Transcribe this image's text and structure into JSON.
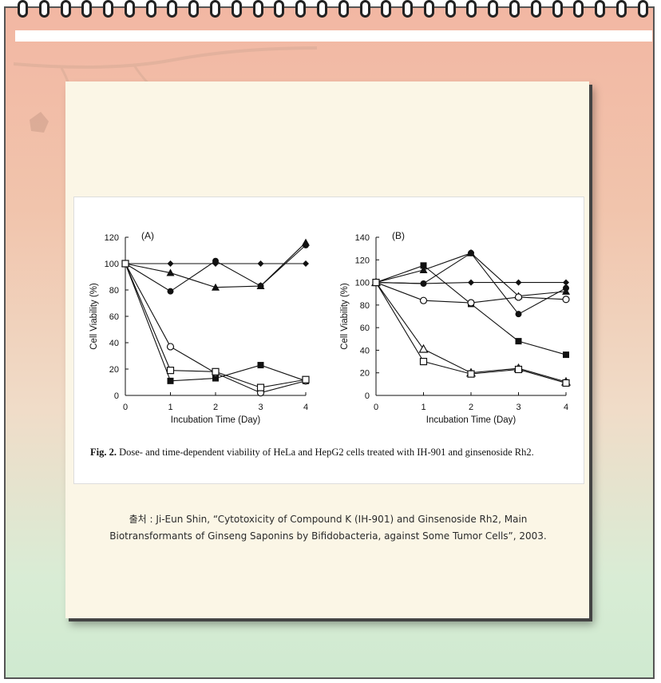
{
  "chart_data": [
    {
      "type": "line",
      "title": "(A)",
      "xlabel": "Incubation Time (Day)",
      "ylabel": "Cell Viability (%)",
      "x": [
        0,
        1,
        2,
        3,
        4
      ],
      "xlim": [
        0,
        4
      ],
      "ylim": [
        0,
        120
      ],
      "xticks": [
        0,
        1,
        2,
        3,
        4
      ],
      "yticks": [
        0,
        20,
        40,
        60,
        80,
        100,
        120
      ],
      "series": [
        {
          "marker": "diamond",
          "values": [
            100,
            100,
            100,
            100,
            100
          ]
        },
        {
          "marker": "circle-filled",
          "values": [
            100,
            79,
            102,
            83,
            114
          ]
        },
        {
          "marker": "triangle",
          "values": [
            100,
            93,
            82,
            83,
            116
          ]
        },
        {
          "marker": "square-filled",
          "values": [
            100,
            11,
            13,
            23,
            11
          ]
        },
        {
          "marker": "circle-open",
          "values": [
            100,
            37,
            17,
            2,
            11
          ]
        },
        {
          "marker": "square-open",
          "values": [
            100,
            19,
            18,
            6,
            12
          ]
        }
      ]
    },
    {
      "type": "line",
      "title": "(B)",
      "xlabel": "Incubation Time (Day)",
      "ylabel": "Cell Viability (%)",
      "x": [
        0,
        1,
        2,
        3,
        4
      ],
      "xlim": [
        0,
        4
      ],
      "ylim": [
        0,
        140
      ],
      "xticks": [
        0,
        1,
        2,
        3,
        4
      ],
      "yticks": [
        0,
        20,
        40,
        60,
        80,
        100,
        120,
        140
      ],
      "series": [
        {
          "marker": "diamond",
          "values": [
            100,
            99,
            100,
            100,
            100
          ]
        },
        {
          "marker": "circle-filled",
          "values": [
            100,
            99,
            126,
            72,
            95
          ]
        },
        {
          "marker": "triangle",
          "values": [
            100,
            111,
            126,
            88,
            92
          ]
        },
        {
          "marker": "square-filled",
          "values": [
            100,
            115,
            81,
            48,
            36
          ]
        },
        {
          "marker": "circle-open",
          "values": [
            100,
            84,
            82,
            87,
            85
          ]
        },
        {
          "marker": "triangle-open",
          "values": [
            100,
            41,
            20,
            24,
            12
          ]
        },
        {
          "marker": "square-open",
          "values": [
            100,
            30,
            19,
            23,
            11
          ]
        }
      ]
    }
  ],
  "caption": {
    "label": "Fig. 2.",
    "text": " Dose- and time-dependent viability of HeLa and HepG2 cells treated with IH-901 and ginsenoside Rh2."
  },
  "source": {
    "line1": "출처 : Ji-Eun Shin, “Cytotoxicity of Compound K (IH-901) and Ginsenoside Rh2, Main",
    "line2": "Biotransformants of Ginseng Saponins by Bifidobacteria, against Some Tumor Cells”, 2003."
  },
  "colors": {
    "ink": "#111111",
    "note": "#fbf6e6",
    "ring": "#222222"
  }
}
